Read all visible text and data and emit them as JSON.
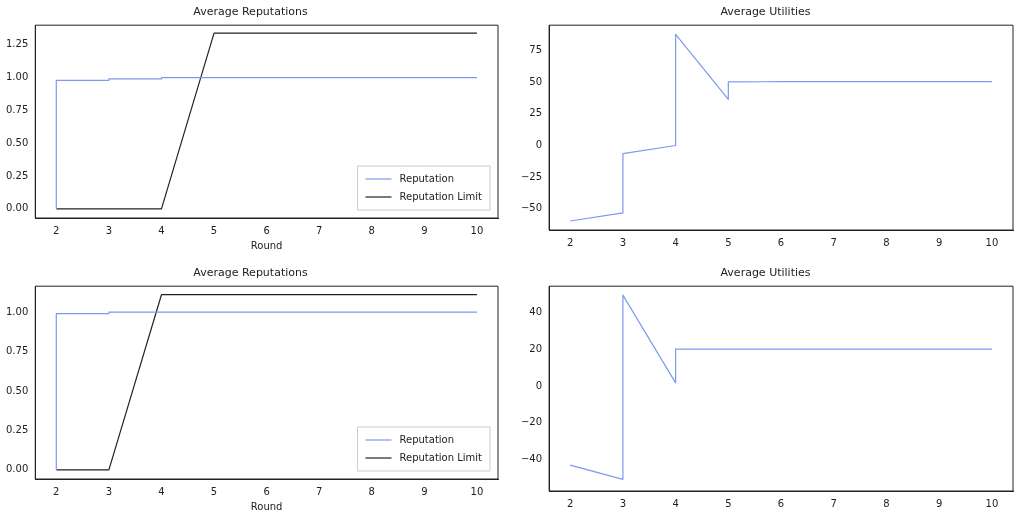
{
  "chart_data": [
    {
      "type": "line",
      "title": "Average Reputations",
      "xlabel": "Round",
      "xlim": [
        1.6,
        10.4
      ],
      "xticks": [
        2,
        3,
        4,
        5,
        6,
        7,
        8,
        9,
        10
      ],
      "ylim": [
        -0.07,
        1.4
      ],
      "yticks": [
        {
          "value": 0,
          "label": "0.00"
        },
        {
          "value": 0.25,
          "label": "0.25"
        },
        {
          "value": 0.5,
          "label": "0.50"
        },
        {
          "value": 0.75,
          "label": "0.75"
        },
        {
          "value": 1,
          "label": "1.00"
        },
        {
          "value": 1.25,
          "label": "1.25"
        }
      ],
      "grid": false,
      "legend": "bottom right",
      "marker": "none",
      "line_style": "solid",
      "series": [
        {
          "name": "Reputation",
          "color": "#7b9af0",
          "x": [
            2,
            2,
            3,
            3,
            4,
            4,
            10
          ],
          "values": [
            0,
            0.98,
            0.98,
            0.99,
            0.99,
            1.0,
            1.0
          ]
        },
        {
          "name": "Reputation Limit",
          "color": "#222222",
          "x": [
            2,
            4,
            5,
            10
          ],
          "values": [
            0,
            0,
            1.34,
            1.34
          ]
        }
      ]
    },
    {
      "type": "line",
      "title": "Average Utilities",
      "xlim": [
        1.6,
        10.4
      ],
      "xticks": [
        2,
        3,
        4,
        5,
        6,
        7,
        8,
        9,
        10
      ],
      "ylim": [
        -66.9,
        95.2
      ],
      "yticks": [
        {
          "value": -50,
          "label": "−50"
        },
        {
          "value": -25,
          "label": "−25"
        },
        0,
        25,
        50,
        75
      ],
      "grid": false,
      "marker": "none",
      "line_style": "solid",
      "series": [
        {
          "color": "#7b9af0",
          "x": [
            2,
            3,
            3,
            4,
            4,
            5,
            5,
            6,
            10
          ],
          "values": [
            -59.8,
            -53.4,
            -6.5,
            0,
            88,
            36.5,
            50.3,
            50.5,
            50.5
          ]
        }
      ]
    },
    {
      "type": "line",
      "title": "Average Reputations",
      "xlabel": "Round",
      "xlim": [
        1.6,
        10.4
      ],
      "xticks": [
        2,
        3,
        4,
        5,
        6,
        7,
        8,
        9,
        10
      ],
      "ylim": [
        -0.058,
        1.164
      ],
      "yticks": [
        {
          "value": 0,
          "label": "0.00"
        },
        {
          "value": 0.25,
          "label": "0.25"
        },
        {
          "value": 0.5,
          "label": "0.50"
        },
        {
          "value": 0.75,
          "label": "0.75"
        },
        {
          "value": 1,
          "label": "1.00"
        }
      ],
      "grid": false,
      "legend": "bottom right",
      "marker": "none",
      "line_style": "solid",
      "series": [
        {
          "name": "Reputation",
          "color": "#7b9af0",
          "x": [
            2,
            2,
            3,
            3,
            10
          ],
          "values": [
            0,
            0.99,
            0.99,
            1.0,
            1.0
          ]
        },
        {
          "name": "Reputation Limit",
          "color": "#222222",
          "x": [
            2,
            3,
            4,
            10
          ],
          "values": [
            0,
            0,
            1.11,
            1.11
          ]
        }
      ]
    },
    {
      "type": "line",
      "title": "Average Utilities",
      "xlim": [
        1.6,
        10.4
      ],
      "xticks": [
        2,
        3,
        4,
        5,
        6,
        7,
        8,
        9,
        10
      ],
      "ylim": [
        -57.5,
        54.6
      ],
      "yticks": [
        {
          "value": -40,
          "label": "−40"
        },
        {
          "value": -20,
          "label": "−20"
        },
        0,
        20,
        40
      ],
      "grid": false,
      "marker": "none",
      "line_style": "solid",
      "series": [
        {
          "color": "#7b9af0",
          "x": [
            2,
            3,
            3,
            4,
            4,
            10
          ],
          "values": [
            -43.3,
            -51.1,
            49.7,
            1.7,
            20.2,
            20.2
          ]
        }
      ]
    }
  ]
}
